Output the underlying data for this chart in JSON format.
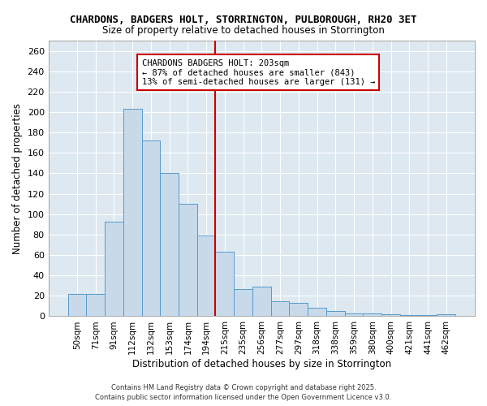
{
  "title": "CHARDONS, BADGERS HOLT, STORRINGTON, PULBOROUGH, RH20 3ET",
  "subtitle": "Size of property relative to detached houses in Storrington",
  "xlabel": "Distribution of detached houses by size in Storrington",
  "ylabel": "Number of detached properties",
  "bar_color": "#c8daea",
  "bar_edge_color": "#5599cc",
  "categories": [
    "50sqm",
    "71sqm",
    "91sqm",
    "112sqm",
    "132sqm",
    "153sqm",
    "174sqm",
    "194sqm",
    "215sqm",
    "235sqm",
    "256sqm",
    "277sqm",
    "297sqm",
    "318sqm",
    "338sqm",
    "359sqm",
    "380sqm",
    "400sqm",
    "421sqm",
    "441sqm",
    "462sqm"
  ],
  "values": [
    22,
    22,
    93,
    203,
    172,
    140,
    110,
    79,
    63,
    27,
    29,
    15,
    13,
    8,
    5,
    3,
    3,
    2,
    1,
    1,
    2
  ],
  "ylim": [
    0,
    270
  ],
  "yticks": [
    0,
    20,
    40,
    60,
    80,
    100,
    120,
    140,
    160,
    180,
    200,
    220,
    240,
    260
  ],
  "red_line_bin": 8,
  "annotation_title": "CHARDONS BADGERS HOLT: 203sqm",
  "annotation_line1": "← 87% of detached houses are smaller (843)",
  "annotation_line2": "13% of semi-detached houses are larger (131) →",
  "annotation_box_color": "#ffffff",
  "annotation_border_color": "#cc0000",
  "red_line_color": "#cc0000",
  "background_color": "#dde8f0",
  "grid_color": "#ffffff",
  "fig_bg_color": "#ffffff",
  "footer_line1": "Contains HM Land Registry data © Crown copyright and database right 2025.",
  "footer_line2": "Contains public sector information licensed under the Open Government Licence v3.0."
}
